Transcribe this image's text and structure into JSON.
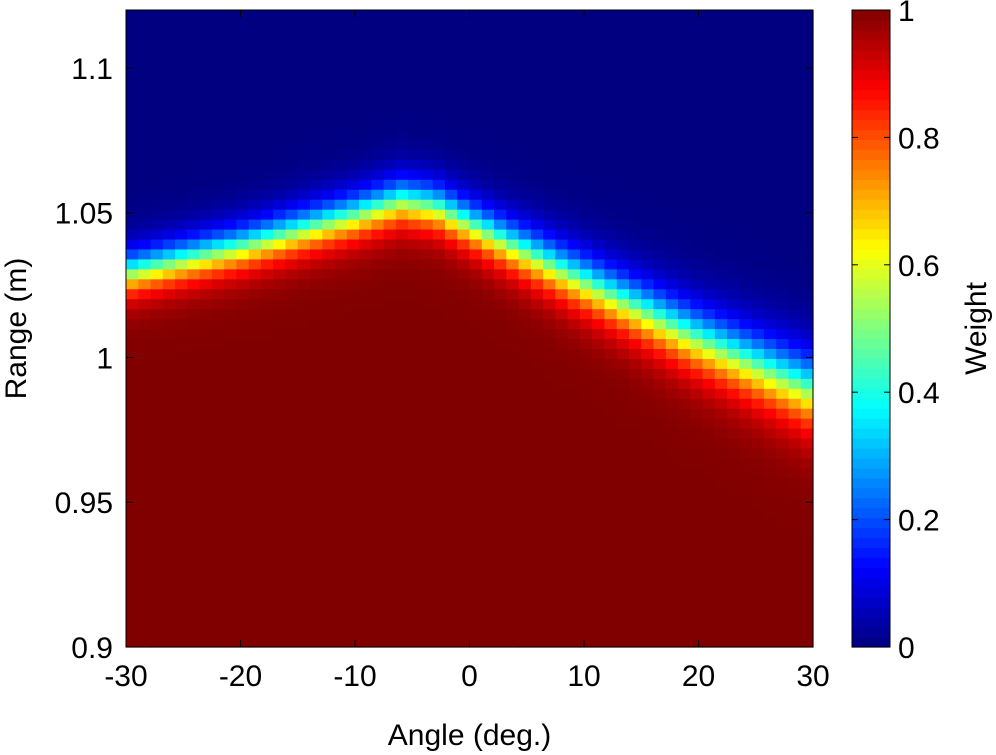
{
  "chart_data": {
    "type": "heatmap",
    "title": "",
    "xlabel": "Angle (deg.)",
    "ylabel": "Range (m)",
    "xlim": [
      -30,
      30
    ],
    "ylim": [
      0.9,
      1.12
    ],
    "xticks": [
      -30,
      -20,
      -10,
      0,
      10,
      20,
      30
    ],
    "xtick_labels": [
      "-30",
      "-20",
      "-10",
      "0",
      "10",
      "20",
      "30"
    ],
    "yticks": [
      0.9,
      0.95,
      1.0,
      1.05,
      1.1
    ],
    "ytick_labels": [
      "0.9",
      "0.95",
      "1",
      "1.05",
      "1.1"
    ],
    "grid": false,
    "colormap": "jet",
    "color_limits": [
      0,
      1
    ],
    "colorbar": {
      "label": "Weight",
      "ticks": [
        0,
        0.2,
        0.4,
        0.6,
        0.8,
        1
      ],
      "tick_labels": [
        "0",
        "0.2",
        "0.4",
        "0.6",
        "0.8",
        "1"
      ]
    },
    "z_description": "Weight ≈ 1 below a boundary range and ≈ 0 above it; transition width ≈ 0.01 m (wider toward the right edge)",
    "boundary": {
      "angle": [
        -30,
        -20,
        -10,
        -6,
        -3,
        0,
        10,
        20,
        30
      ],
      "range_at_half_weight": [
        1.029,
        1.038,
        1.049,
        1.054,
        1.052,
        1.046,
        1.026,
        1.006,
        0.988
      ]
    },
    "transition_width": {
      "angle": [
        -30,
        0,
        30
      ],
      "width": [
        0.0045,
        0.005,
        0.0075
      ]
    }
  }
}
